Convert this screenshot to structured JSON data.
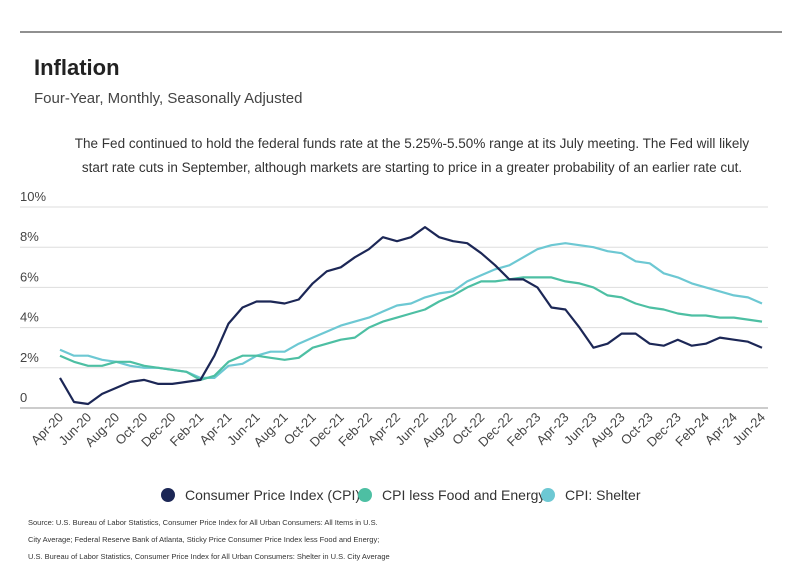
{
  "title": "Inflation",
  "subtitle": "Four-Year, Monthly, Seasonally Adjusted",
  "annotation": [
    "The Fed continued to hold the federal funds rate at the 5.25%-5.50% range at its July meeting. The Fed will likely",
    "start rate cuts in September, although markets are starting to price in a greater probability of an earlier rate cut."
  ],
  "source": [
    "Source:  U.S. Bureau of Labor Statistics, Consumer Price Index for All Urban Consumers: All Items in U.S.",
    "City Average; Federal Reserve Bank of Atlanta, Sticky Price Consumer Price Index less Food and Energy;",
    "U.S. Bureau of Labor Statistics, Consumer Price Index for All Urban Consumers: Shelter in U.S. City Average"
  ],
  "chart_data": {
    "type": "line",
    "categories": [
      "Apr-20",
      null,
      "Jun-20",
      null,
      "Aug-20",
      null,
      "Oct-20",
      null,
      "Dec-20",
      null,
      "Feb-21",
      null,
      "Apr-21",
      null,
      "Jun-21",
      null,
      "Aug-21",
      null,
      "Oct-21",
      null,
      "Dec-21",
      null,
      "Feb-22",
      null,
      "Apr-22",
      null,
      "Jun-22",
      null,
      "Aug-22",
      null,
      "Oct-22",
      null,
      "Dec-22",
      null,
      "Feb-23",
      null,
      "Apr-23",
      null,
      "Jun-23",
      null,
      "Aug-23",
      null,
      "Oct-23",
      null,
      "Dec-23",
      null,
      "Feb-24",
      null,
      "Apr-24",
      null,
      "Jun-24"
    ],
    "series": [
      {
        "name": "Consumer Price Index (CPI)",
        "color": "#1c2756",
        "values": [
          1.5,
          0.3,
          0.2,
          0.7,
          1.0,
          1.3,
          1.4,
          1.2,
          1.2,
          1.3,
          1.4,
          2.6,
          4.2,
          5.0,
          5.3,
          5.3,
          5.2,
          5.4,
          6.2,
          6.8,
          7.0,
          7.5,
          7.9,
          8.5,
          8.3,
          8.5,
          9.0,
          8.5,
          8.3,
          8.2,
          7.7,
          7.1,
          6.4,
          6.4,
          6.0,
          5.0,
          4.9,
          4.0,
          3.0,
          3.2,
          3.7,
          3.7,
          3.2,
          3.1,
          3.4,
          3.1,
          3.2,
          3.5,
          3.4,
          3.3,
          3.0
        ]
      },
      {
        "name": "CPI less Food and Energy",
        "color": "#4dbfa3",
        "values": [
          2.6,
          2.3,
          2.1,
          2.1,
          2.3,
          2.3,
          2.1,
          2.0,
          1.9,
          1.8,
          1.4,
          1.6,
          2.3,
          2.6,
          2.6,
          2.5,
          2.4,
          2.5,
          3.0,
          3.2,
          3.4,
          3.5,
          4.0,
          4.3,
          4.5,
          4.7,
          4.9,
          5.3,
          5.6,
          6.0,
          6.3,
          6.3,
          6.4,
          6.5,
          6.5,
          6.5,
          6.3,
          6.2,
          6.0,
          5.6,
          5.5,
          5.2,
          5.0,
          4.9,
          4.7,
          4.6,
          4.6,
          4.5,
          4.5,
          4.4,
          4.3
        ]
      },
      {
        "name": "CPI: Shelter",
        "color": "#6dc8d3",
        "values": [
          2.9,
          2.6,
          2.6,
          2.4,
          2.3,
          2.1,
          2.0,
          2.0,
          1.9,
          1.8,
          1.5,
          1.5,
          2.1,
          2.2,
          2.6,
          2.8,
          2.8,
          3.2,
          3.5,
          3.8,
          4.1,
          4.3,
          4.5,
          4.8,
          5.1,
          5.2,
          5.5,
          5.7,
          5.8,
          6.3,
          6.6,
          6.9,
          7.1,
          7.5,
          7.9,
          8.1,
          8.2,
          8.1,
          8.0,
          7.8,
          7.7,
          7.3,
          7.2,
          6.7,
          6.5,
          6.2,
          6.0,
          5.8,
          5.6,
          5.5,
          5.2
        ]
      }
    ],
    "ylim": [
      0,
      10
    ],
    "yticks": [
      0,
      {
        "value": 2,
        "label": "2%"
      },
      {
        "value": 4,
        "label": "4%"
      },
      {
        "value": 6,
        "label": "6%"
      },
      {
        "value": 8,
        "label": "8%"
      },
      {
        "value": 10,
        "label": "10%"
      }
    ],
    "grid": true
  }
}
